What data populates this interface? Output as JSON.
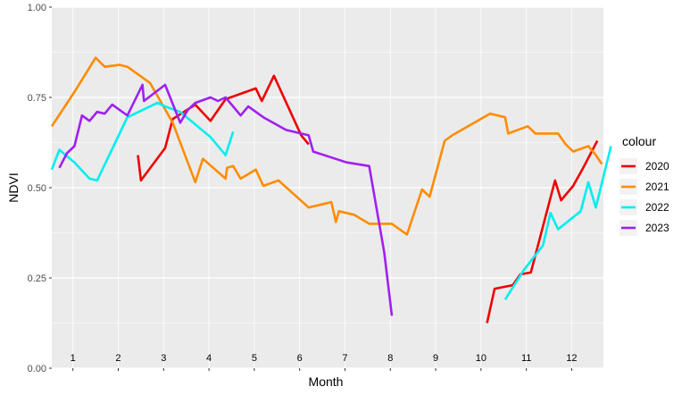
{
  "chart_data": {
    "type": "line",
    "title": "",
    "xlabel": "Month",
    "ylabel": "NDVI",
    "xlim": [
      1,
      366
    ],
    "ylim": [
      0,
      1
    ],
    "yticks": [
      0.0,
      0.25,
      0.5,
      0.75,
      1.0
    ],
    "ytick_labels": [
      "0.00",
      "0.25",
      "0.50",
      "0.75",
      "1.00"
    ],
    "grid": true,
    "legend": {
      "title": "colour",
      "position": "right"
    },
    "month_labels": [
      "1",
      "2",
      "3",
      "4",
      "5",
      "6",
      "7",
      "8",
      "9",
      "10",
      "11",
      "12"
    ],
    "month_label_x": [
      15,
      45,
      75,
      105,
      135,
      165,
      195,
      225,
      255,
      285,
      315,
      345
    ],
    "month_label_y": 0.02,
    "series": [
      {
        "name": "2020",
        "color": "#ee0000",
        "segments": [
          [
            [
              58,
              0.59
            ],
            [
              60,
              0.52
            ],
            [
              76,
              0.61
            ],
            [
              81,
              0.69
            ],
            [
              96,
              0.73
            ],
            [
              106,
              0.685
            ],
            [
              116,
              0.745
            ],
            [
              136,
              0.775
            ],
            [
              140,
              0.74
            ],
            [
              148,
              0.81
            ],
            [
              166,
              0.645
            ],
            [
              171,
              0.62
            ]
          ],
          [
            [
              289,
              0.125
            ],
            [
              294,
              0.22
            ],
            [
              306,
              0.23
            ],
            [
              311,
              0.26
            ],
            [
              318,
              0.265
            ],
            [
              334,
              0.52
            ],
            [
              338,
              0.465
            ],
            [
              346,
              0.505
            ],
            [
              352,
              0.55
            ],
            [
              362,
              0.63
            ]
          ]
        ]
      },
      {
        "name": "2021",
        "color": "#ff8c00",
        "segments": [
          [
            [
              1,
              0.67
            ],
            [
              16,
              0.765
            ],
            [
              30,
              0.86
            ],
            [
              36,
              0.835
            ],
            [
              46,
              0.84
            ],
            [
              51,
              0.835
            ],
            [
              66,
              0.79
            ],
            [
              81,
              0.68
            ],
            [
              96,
              0.515
            ],
            [
              101,
              0.58
            ],
            [
              116,
              0.525
            ],
            [
              117,
              0.555
            ],
            [
              121,
              0.56
            ],
            [
              126,
              0.525
            ],
            [
              136,
              0.55
            ],
            [
              141,
              0.505
            ],
            [
              151,
              0.52
            ],
            [
              171,
              0.445
            ],
            [
              186,
              0.46
            ],
            [
              189,
              0.405
            ],
            [
              191,
              0.435
            ],
            [
              196,
              0.43
            ],
            [
              201,
              0.425
            ],
            [
              211,
              0.4
            ],
            [
              226,
              0.4
            ],
            [
              236,
              0.37
            ],
            [
              246,
              0.495
            ],
            [
              251,
              0.475
            ],
            [
              261,
              0.63
            ],
            [
              266,
              0.645
            ],
            [
              291,
              0.705
            ],
            [
              301,
              0.695
            ],
            [
              303,
              0.65
            ],
            [
              316,
              0.67
            ],
            [
              321,
              0.65
            ],
            [
              336,
              0.65
            ],
            [
              341,
              0.62
            ],
            [
              346,
              0.6
            ],
            [
              356,
              0.615
            ],
            [
              361,
              0.59
            ],
            [
              365,
              0.565
            ]
          ]
        ]
      },
      {
        "name": "2022",
        "color": "#00eeee",
        "segments": [
          [
            [
              1,
              0.55
            ],
            [
              6,
              0.605
            ],
            [
              16,
              0.57
            ],
            [
              26,
              0.525
            ],
            [
              31,
              0.52
            ],
            [
              51,
              0.695
            ],
            [
              71,
              0.735
            ],
            [
              76,
              0.725
            ],
            [
              86,
              0.71
            ],
            [
              106,
              0.64
            ],
            [
              116,
              0.59
            ],
            [
              121,
              0.655
            ]
          ],
          [
            [
              301,
              0.19
            ],
            [
              313,
              0.27
            ],
            [
              326,
              0.34
            ],
            [
              331,
              0.43
            ],
            [
              336,
              0.385
            ],
            [
              351,
              0.435
            ],
            [
              356,
              0.515
            ],
            [
              361,
              0.445
            ],
            [
              371,
              0.615
            ]
          ]
        ]
      },
      {
        "name": "2023",
        "color": "#a020f0",
        "segments": [
          [
            [
              6,
              0.555
            ],
            [
              11,
              0.595
            ],
            [
              16,
              0.615
            ],
            [
              21,
              0.7
            ],
            [
              26,
              0.685
            ],
            [
              31,
              0.71
            ],
            [
              36,
              0.705
            ],
            [
              41,
              0.73
            ],
            [
              51,
              0.7
            ],
            [
              61,
              0.785
            ],
            [
              62,
              0.74
            ],
            [
              76,
              0.785
            ],
            [
              86,
              0.68
            ],
            [
              91,
              0.715
            ],
            [
              96,
              0.735
            ],
            [
              106,
              0.75
            ],
            [
              111,
              0.74
            ],
            [
              116,
              0.75
            ],
            [
              126,
              0.7
            ],
            [
              131,
              0.725
            ],
            [
              141,
              0.695
            ],
            [
              156,
              0.66
            ],
            [
              171,
              0.645
            ],
            [
              174,
              0.6
            ],
            [
              196,
              0.57
            ],
            [
              211,
              0.56
            ],
            [
              221,
              0.32
            ],
            [
              226,
              0.145
            ]
          ]
        ]
      }
    ]
  }
}
